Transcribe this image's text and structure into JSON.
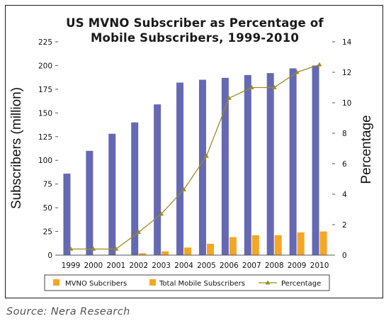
{
  "source_text": "Source: Nera Research",
  "chart_data": {
    "type": "bar",
    "title_lines": [
      "US MVNO Subscriber as Percentage of",
      "Mobile Subscribers, 1999-2010"
    ],
    "ylabel": "Subscribers (million)",
    "y2label": "Percentage",
    "categories": [
      "1999",
      "2000",
      "2001",
      "2002",
      "2003",
      "2004",
      "2005",
      "2006",
      "2007",
      "2008",
      "2009",
      "2010"
    ],
    "ylim": [
      0,
      225
    ],
    "y_ticks": [
      0,
      25,
      50,
      75,
      100,
      125,
      150,
      175,
      200,
      225
    ],
    "y2lim": [
      0,
      14
    ],
    "y2_ticks": [
      0,
      2,
      4,
      6,
      8,
      10,
      12,
      14
    ],
    "series": [
      {
        "name": "MVNO Subcribers",
        "type": "bar",
        "axis": "left",
        "color": "#f5a623",
        "values": [
          0,
          0,
          0,
          2,
          4,
          8,
          12,
          19,
          21,
          21,
          24,
          25
        ]
      },
      {
        "name": "Total Mobile Subscribers",
        "type": "bar",
        "axis": "left",
        "color": "#6569b3",
        "values": [
          86,
          110,
          128,
          140,
          159,
          182,
          185,
          187,
          190,
          192,
          197,
          200
        ]
      },
      {
        "name": "Percentage",
        "type": "line",
        "axis": "right",
        "color": "#9c8a22",
        "values": [
          0.4,
          0.4,
          0.4,
          1.5,
          2.7,
          4.3,
          6.5,
          10.3,
          11,
          11,
          12,
          12.5
        ]
      }
    ],
    "legend_position": "bottom",
    "grid": false
  }
}
